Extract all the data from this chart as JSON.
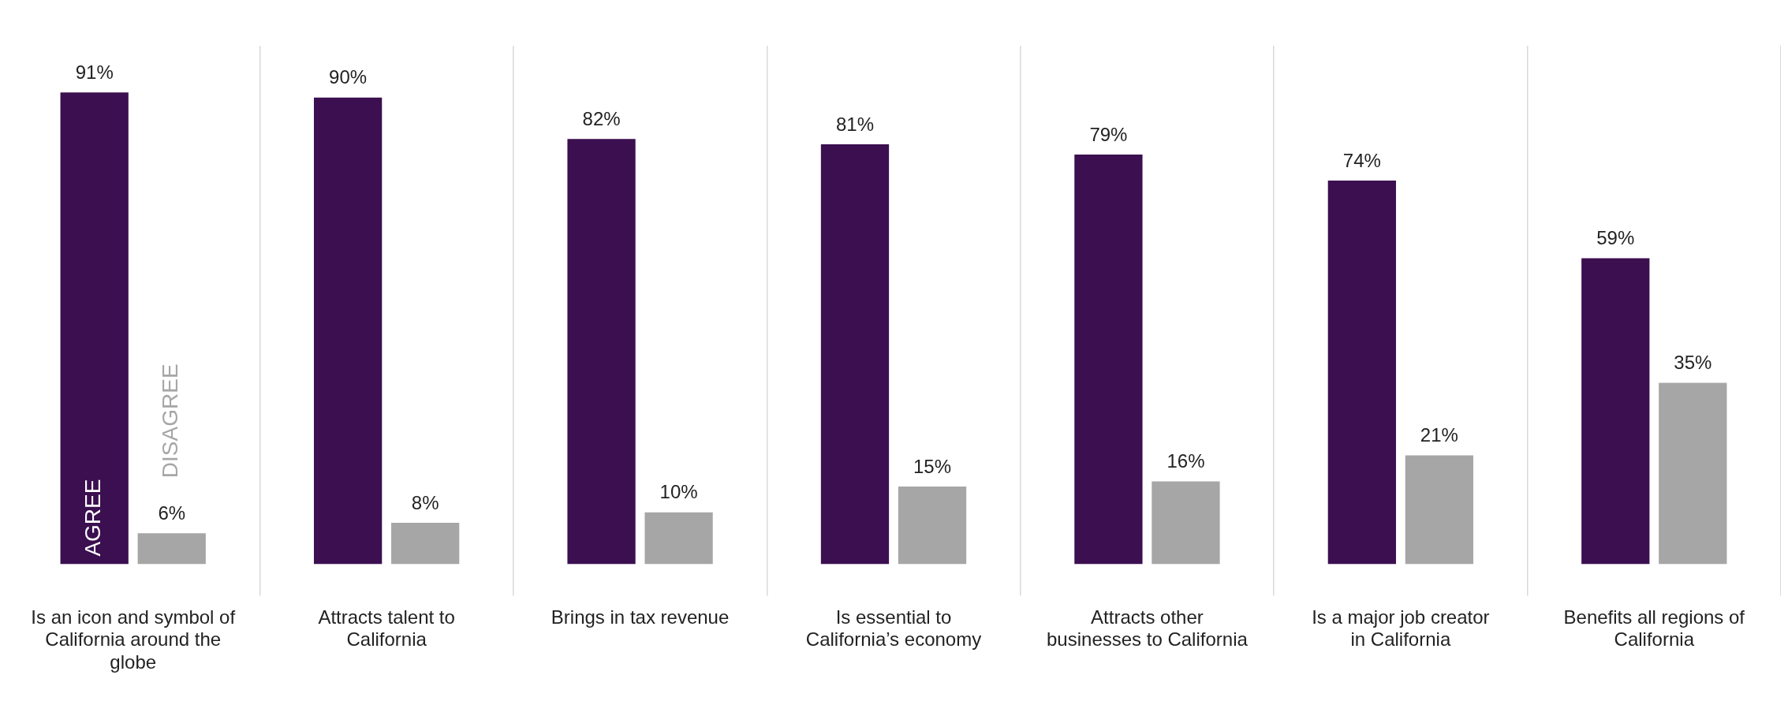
{
  "chart_data": {
    "type": "bar",
    "categories": [
      "Is an icon and symbol of California around the globe",
      "Attracts talent to California",
      "Brings in tax revenue",
      "Is essential to California’s economy",
      "Attracts other businesses to California",
      "Is a major job creator in California",
      "Benefits all regions of California"
    ],
    "series": [
      {
        "name": "AGREE",
        "color": "#3b0f50",
        "values": [
          91,
          90,
          82,
          81,
          79,
          74,
          59
        ],
        "value_labels": [
          "91%",
          "90%",
          "82%",
          "81%",
          "79%",
          "74%",
          "59%"
        ]
      },
      {
        "name": "DISAGREE",
        "color": "#a6a6a6",
        "values": [
          6,
          8,
          10,
          15,
          16,
          21,
          35
        ],
        "value_labels": [
          "6%",
          "8%",
          "10%",
          "15%",
          "16%",
          "21%",
          "35%"
        ]
      }
    ],
    "grid": "x",
    "legend": false
  }
}
